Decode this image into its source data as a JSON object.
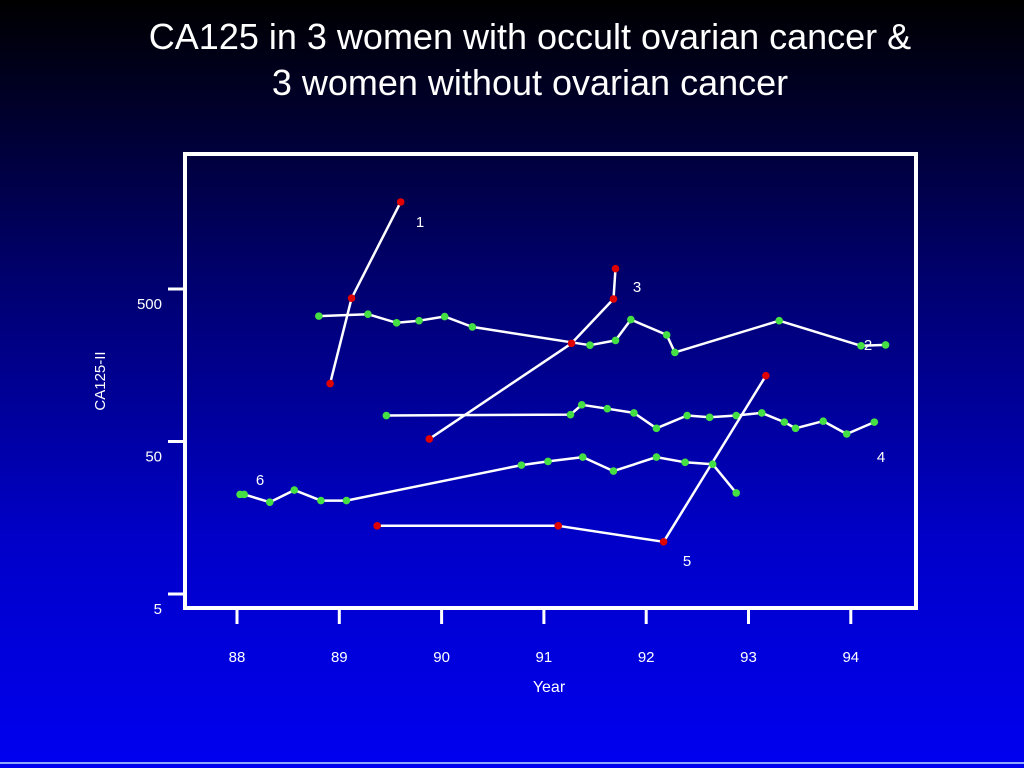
{
  "title": {
    "line1": "CA125 in 3 women with occult ovarian cancer &",
    "line2": "3 women without ovarian cancer"
  },
  "colors": {
    "axis": "#ffffff",
    "line": "#ffffff",
    "cancer_point": "#e00000",
    "non_cancer_point": "#44e044",
    "text": "#ffffff"
  },
  "chart_data": {
    "type": "line",
    "xlabel": "Year",
    "ylabel": "CA125-II",
    "x_ticks": [
      "88",
      "89",
      "90",
      "91",
      "92",
      "93",
      "94"
    ],
    "y_ticks": [
      "5",
      "50",
      "500"
    ],
    "xlim": [
      87.5,
      94.65
    ],
    "ylim": [
      5,
      5000
    ],
    "y_scale": "log",
    "grid": false,
    "series": [
      {
        "name": "1",
        "group": "cancer",
        "x": [
          88.91,
          89.12,
          89.6
        ],
        "y": [
          120,
          435,
          1860
        ]
      },
      {
        "name": "2",
        "group": "non-cancer",
        "x": [
          88.8,
          89.28,
          89.56,
          89.78,
          90.03,
          90.3,
          91.45,
          91.7,
          91.85,
          92.2,
          92.28,
          93.3,
          94.1,
          94.34
        ],
        "y": [
          332,
          342,
          300,
          310,
          330,
          282,
          214,
          230,
          315,
          250,
          192,
          310,
          212,
          215
        ]
      },
      {
        "name": "3",
        "group": "cancer",
        "x": [
          89.88,
          91.27,
          91.68,
          91.7
        ],
        "y": [
          52,
          220,
          430,
          680
        ]
      },
      {
        "name": "4",
        "group": "non-cancer",
        "x": [
          89.46,
          91.26,
          91.37,
          91.62,
          91.88,
          92.1,
          92.4,
          92.62,
          92.88,
          93.13,
          93.35,
          93.46,
          93.73,
          93.96,
          94.23
        ],
        "y": [
          74,
          75,
          87,
          82,
          77,
          61,
          74,
          72,
          74,
          77,
          67,
          61,
          68,
          56,
          67
        ]
      },
      {
        "name": "5",
        "group": "cancer",
        "x": [
          89.37,
          91.14,
          92.17,
          93.17
        ],
        "y": [
          14,
          14,
          11,
          135
        ]
      },
      {
        "name": "6",
        "group": "non-cancer",
        "x": [
          88.03,
          88.07,
          88.32,
          88.56,
          88.82,
          89.07,
          90.78,
          91.04,
          91.38,
          91.68,
          92.1,
          92.38,
          92.65,
          92.88
        ],
        "y": [
          22.5,
          22.5,
          20,
          24,
          20.5,
          20.5,
          35,
          37,
          39.5,
          32,
          39.5,
          36.5,
          35.5,
          23
        ]
      }
    ]
  }
}
